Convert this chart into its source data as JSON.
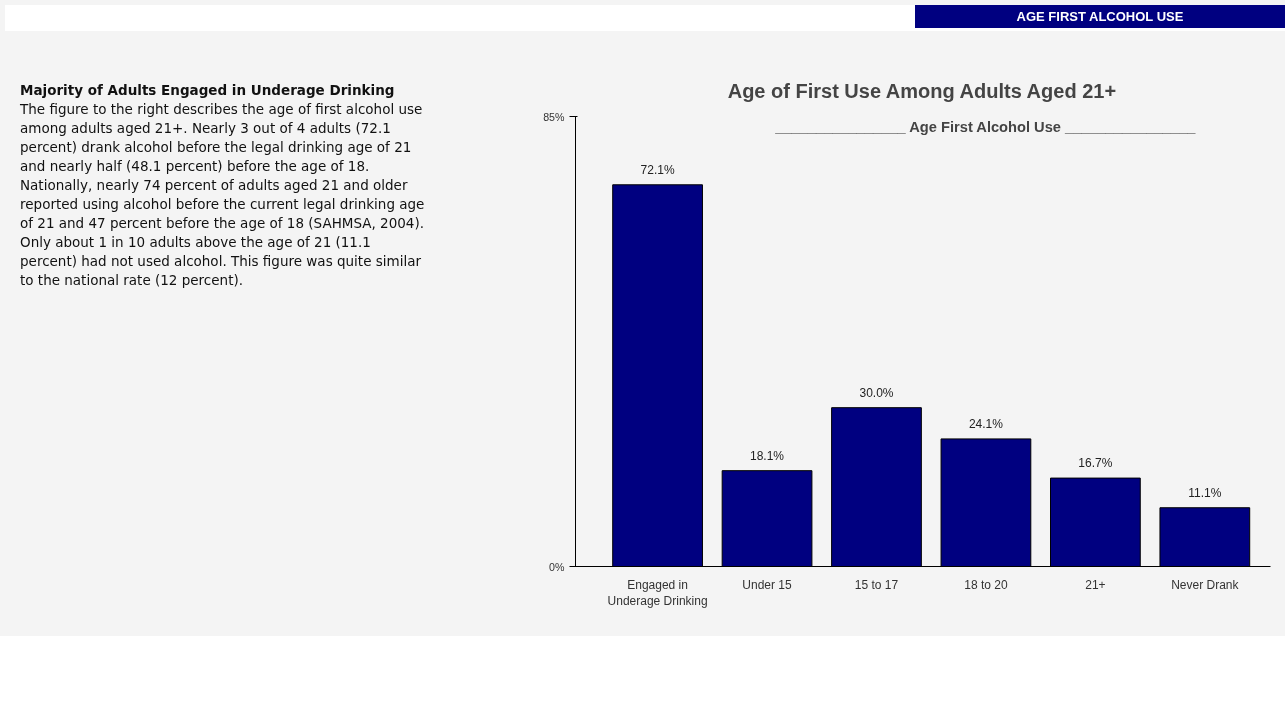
{
  "chart_data": {
    "type": "bar",
    "title": "Age of First Use Among Adults Aged 21+",
    "categories": [
      "Engaged in Underage Drinking",
      "Under 15",
      "15 to 17",
      "18 to 20",
      "21+",
      "Never Drank"
    ],
    "values": [
      72.1,
      18.1,
      30.0,
      24.1,
      16.7,
      11.1
    ],
    "color": "#000080",
    "value_labels": [
      "72.1%",
      "18.1%",
      "30.0%",
      "24.1%",
      "16.7%",
      "11.1%"
    ],
    "ylim": [
      0,
      85
    ],
    "yticks": [
      {
        "value": 0,
        "label": "0%"
      },
      {
        "value": 85,
        "label": "85%"
      }
    ],
    "grid": false,
    "annotations": [
      "AGE FIRST ALCOHOL USE",
      "Majority of Adults Engaged in Underage Drinking",
      "The figure to the right describes the age of first alcohol use among adults aged 21+. Nearly 3 out of 4 adults (72.1 percent) drank alcohol before the legal drinking age of 21 and nearly half (48.1 percent) before the age of 18. Nationally, nearly 74 percent of adults aged 21 and older reported using alcohol before the current legal drinking age of 21 and 47 percent before the age of 18 (SAHMSA, 2004).",
      "Only about 1 in 10 adults above the age of 21 (11.1 percent) had not used alcohol. This figure was quite similar to the national rate (12 percent).",
      "________________ Age First Alcohol Use ________________"
    ]
  }
}
